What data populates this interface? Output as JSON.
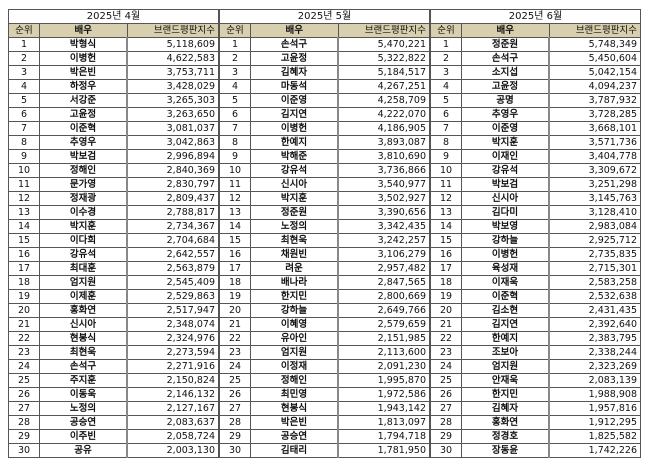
{
  "headers": {
    "rank": "순위",
    "name": "배우",
    "score": "브랜드평판지수"
  },
  "header_color": "#d8cfae",
  "tables": [
    {
      "title": "2025년 4월",
      "rows": [
        {
          "rank": "1",
          "name": "박형식",
          "score": "5,118,609"
        },
        {
          "rank": "2",
          "name": "이병헌",
          "score": "4,622,583"
        },
        {
          "rank": "3",
          "name": "박은빈",
          "score": "3,753,711"
        },
        {
          "rank": "4",
          "name": "하정우",
          "score": "3,428,029"
        },
        {
          "rank": "5",
          "name": "서강준",
          "score": "3,265,303"
        },
        {
          "rank": "6",
          "name": "고윤정",
          "score": "3,263,650"
        },
        {
          "rank": "7",
          "name": "이준혁",
          "score": "3,081,037"
        },
        {
          "rank": "8",
          "name": "추영우",
          "score": "3,042,863"
        },
        {
          "rank": "9",
          "name": "박보검",
          "score": "2,996,894"
        },
        {
          "rank": "10",
          "name": "정해인",
          "score": "2,840,369"
        },
        {
          "rank": "11",
          "name": "문가영",
          "score": "2,830,797"
        },
        {
          "rank": "12",
          "name": "정재광",
          "score": "2,809,437"
        },
        {
          "rank": "13",
          "name": "이수경",
          "score": "2,788,817"
        },
        {
          "rank": "14",
          "name": "박지훈",
          "score": "2,734,367"
        },
        {
          "rank": "15",
          "name": "이다희",
          "score": "2,704,684"
        },
        {
          "rank": "16",
          "name": "강유석",
          "score": "2,642,557"
        },
        {
          "rank": "17",
          "name": "최대훈",
          "score": "2,563,879"
        },
        {
          "rank": "18",
          "name": "엄지원",
          "score": "2,545,409"
        },
        {
          "rank": "19",
          "name": "이제훈",
          "score": "2,529,863"
        },
        {
          "rank": "20",
          "name": "홍화연",
          "score": "2,517,947"
        },
        {
          "rank": "21",
          "name": "신시아",
          "score": "2,348,074"
        },
        {
          "rank": "22",
          "name": "현봉식",
          "score": "2,324,976"
        },
        {
          "rank": "23",
          "name": "최현욱",
          "score": "2,273,594"
        },
        {
          "rank": "24",
          "name": "손석구",
          "score": "2,271,916"
        },
        {
          "rank": "25",
          "name": "주지훈",
          "score": "2,150,824"
        },
        {
          "rank": "26",
          "name": "이동욱",
          "score": "2,146,132"
        },
        {
          "rank": "27",
          "name": "노정의",
          "score": "2,127,167"
        },
        {
          "rank": "28",
          "name": "공승연",
          "score": "2,083,637"
        },
        {
          "rank": "29",
          "name": "이주빈",
          "score": "2,058,724"
        },
        {
          "rank": "30",
          "name": "공유",
          "score": "2,003,130"
        }
      ]
    },
    {
      "title": "2025년 5월",
      "rows": [
        {
          "rank": "1",
          "name": "손석구",
          "score": "5,470,221"
        },
        {
          "rank": "2",
          "name": "고윤정",
          "score": "5,322,822"
        },
        {
          "rank": "3",
          "name": "김혜자",
          "score": "5,184,517"
        },
        {
          "rank": "4",
          "name": "마동석",
          "score": "4,267,251"
        },
        {
          "rank": "5",
          "name": "이준영",
          "score": "4,258,709"
        },
        {
          "rank": "6",
          "name": "김지연",
          "score": "4,222,070"
        },
        {
          "rank": "7",
          "name": "이병헌",
          "score": "4,186,905"
        },
        {
          "rank": "8",
          "name": "한예지",
          "score": "3,893,087"
        },
        {
          "rank": "9",
          "name": "박해준",
          "score": "3,810,690"
        },
        {
          "rank": "10",
          "name": "강유석",
          "score": "3,736,866"
        },
        {
          "rank": "11",
          "name": "신시아",
          "score": "3,540,977"
        },
        {
          "rank": "12",
          "name": "박지훈",
          "score": "3,502,927"
        },
        {
          "rank": "13",
          "name": "정준원",
          "score": "3,390,656"
        },
        {
          "rank": "14",
          "name": "노정의",
          "score": "3,342,435"
        },
        {
          "rank": "15",
          "name": "최현욱",
          "score": "3,242,257"
        },
        {
          "rank": "16",
          "name": "채원빈",
          "score": "3,106,279"
        },
        {
          "rank": "17",
          "name": "려운",
          "score": "2,957,482"
        },
        {
          "rank": "18",
          "name": "배나라",
          "score": "2,847,565"
        },
        {
          "rank": "19",
          "name": "한지민",
          "score": "2,800,669"
        },
        {
          "rank": "20",
          "name": "강하늘",
          "score": "2,649,766"
        },
        {
          "rank": "21",
          "name": "이혜영",
          "score": "2,579,659"
        },
        {
          "rank": "22",
          "name": "유아인",
          "score": "2,151,985"
        },
        {
          "rank": "23",
          "name": "엄지원",
          "score": "2,113,600"
        },
        {
          "rank": "24",
          "name": "이정재",
          "score": "2,091,230"
        },
        {
          "rank": "25",
          "name": "정해인",
          "score": "1,995,870"
        },
        {
          "rank": "26",
          "name": "최민영",
          "score": "1,972,586"
        },
        {
          "rank": "27",
          "name": "현봉식",
          "score": "1,943,142"
        },
        {
          "rank": "28",
          "name": "박은빈",
          "score": "1,813,097"
        },
        {
          "rank": "29",
          "name": "공승연",
          "score": "1,794,718"
        },
        {
          "rank": "30",
          "name": "김태리",
          "score": "1,781,950"
        }
      ]
    },
    {
      "title": "2025년 6월",
      "rows": [
        {
          "rank": "1",
          "name": "정준원",
          "score": "5,748,349"
        },
        {
          "rank": "2",
          "name": "손석구",
          "score": "5,450,604"
        },
        {
          "rank": "3",
          "name": "소지섭",
          "score": "5,042,154"
        },
        {
          "rank": "4",
          "name": "고윤정",
          "score": "4,094,237"
        },
        {
          "rank": "5",
          "name": "공명",
          "score": "3,787,932"
        },
        {
          "rank": "6",
          "name": "추영우",
          "score": "3,728,285"
        },
        {
          "rank": "7",
          "name": "이준영",
          "score": "3,668,101"
        },
        {
          "rank": "8",
          "name": "박지훈",
          "score": "3,571,736"
        },
        {
          "rank": "9",
          "name": "이재인",
          "score": "3,404,778"
        },
        {
          "rank": "10",
          "name": "강유석",
          "score": "3,309,672"
        },
        {
          "rank": "11",
          "name": "박보검",
          "score": "3,251,298"
        },
        {
          "rank": "12",
          "name": "신시아",
          "score": "3,145,763"
        },
        {
          "rank": "13",
          "name": "김다미",
          "score": "3,128,410"
        },
        {
          "rank": "14",
          "name": "박보영",
          "score": "2,983,084"
        },
        {
          "rank": "15",
          "name": "강하늘",
          "score": "2,925,712"
        },
        {
          "rank": "16",
          "name": "이병헌",
          "score": "2,735,835"
        },
        {
          "rank": "17",
          "name": "육성재",
          "score": "2,715,301"
        },
        {
          "rank": "18",
          "name": "이재욱",
          "score": "2,583,258"
        },
        {
          "rank": "19",
          "name": "이준혁",
          "score": "2,532,638"
        },
        {
          "rank": "20",
          "name": "김소현",
          "score": "2,431,435"
        },
        {
          "rank": "21",
          "name": "김지연",
          "score": "2,392,640"
        },
        {
          "rank": "22",
          "name": "한예지",
          "score": "2,383,795"
        },
        {
          "rank": "23",
          "name": "조보아",
          "score": "2,338,244"
        },
        {
          "rank": "24",
          "name": "엄지원",
          "score": "2,323,269"
        },
        {
          "rank": "25",
          "name": "안재욱",
          "score": "2,083,139"
        },
        {
          "rank": "26",
          "name": "한지민",
          "score": "1,988,908"
        },
        {
          "rank": "27",
          "name": "김혜자",
          "score": "1,957,816"
        },
        {
          "rank": "28",
          "name": "홍화연",
          "score": "1,912,295"
        },
        {
          "rank": "29",
          "name": "정경호",
          "score": "1,825,582"
        },
        {
          "rank": "30",
          "name": "장동윤",
          "score": "1,742,226"
        }
      ]
    }
  ]
}
